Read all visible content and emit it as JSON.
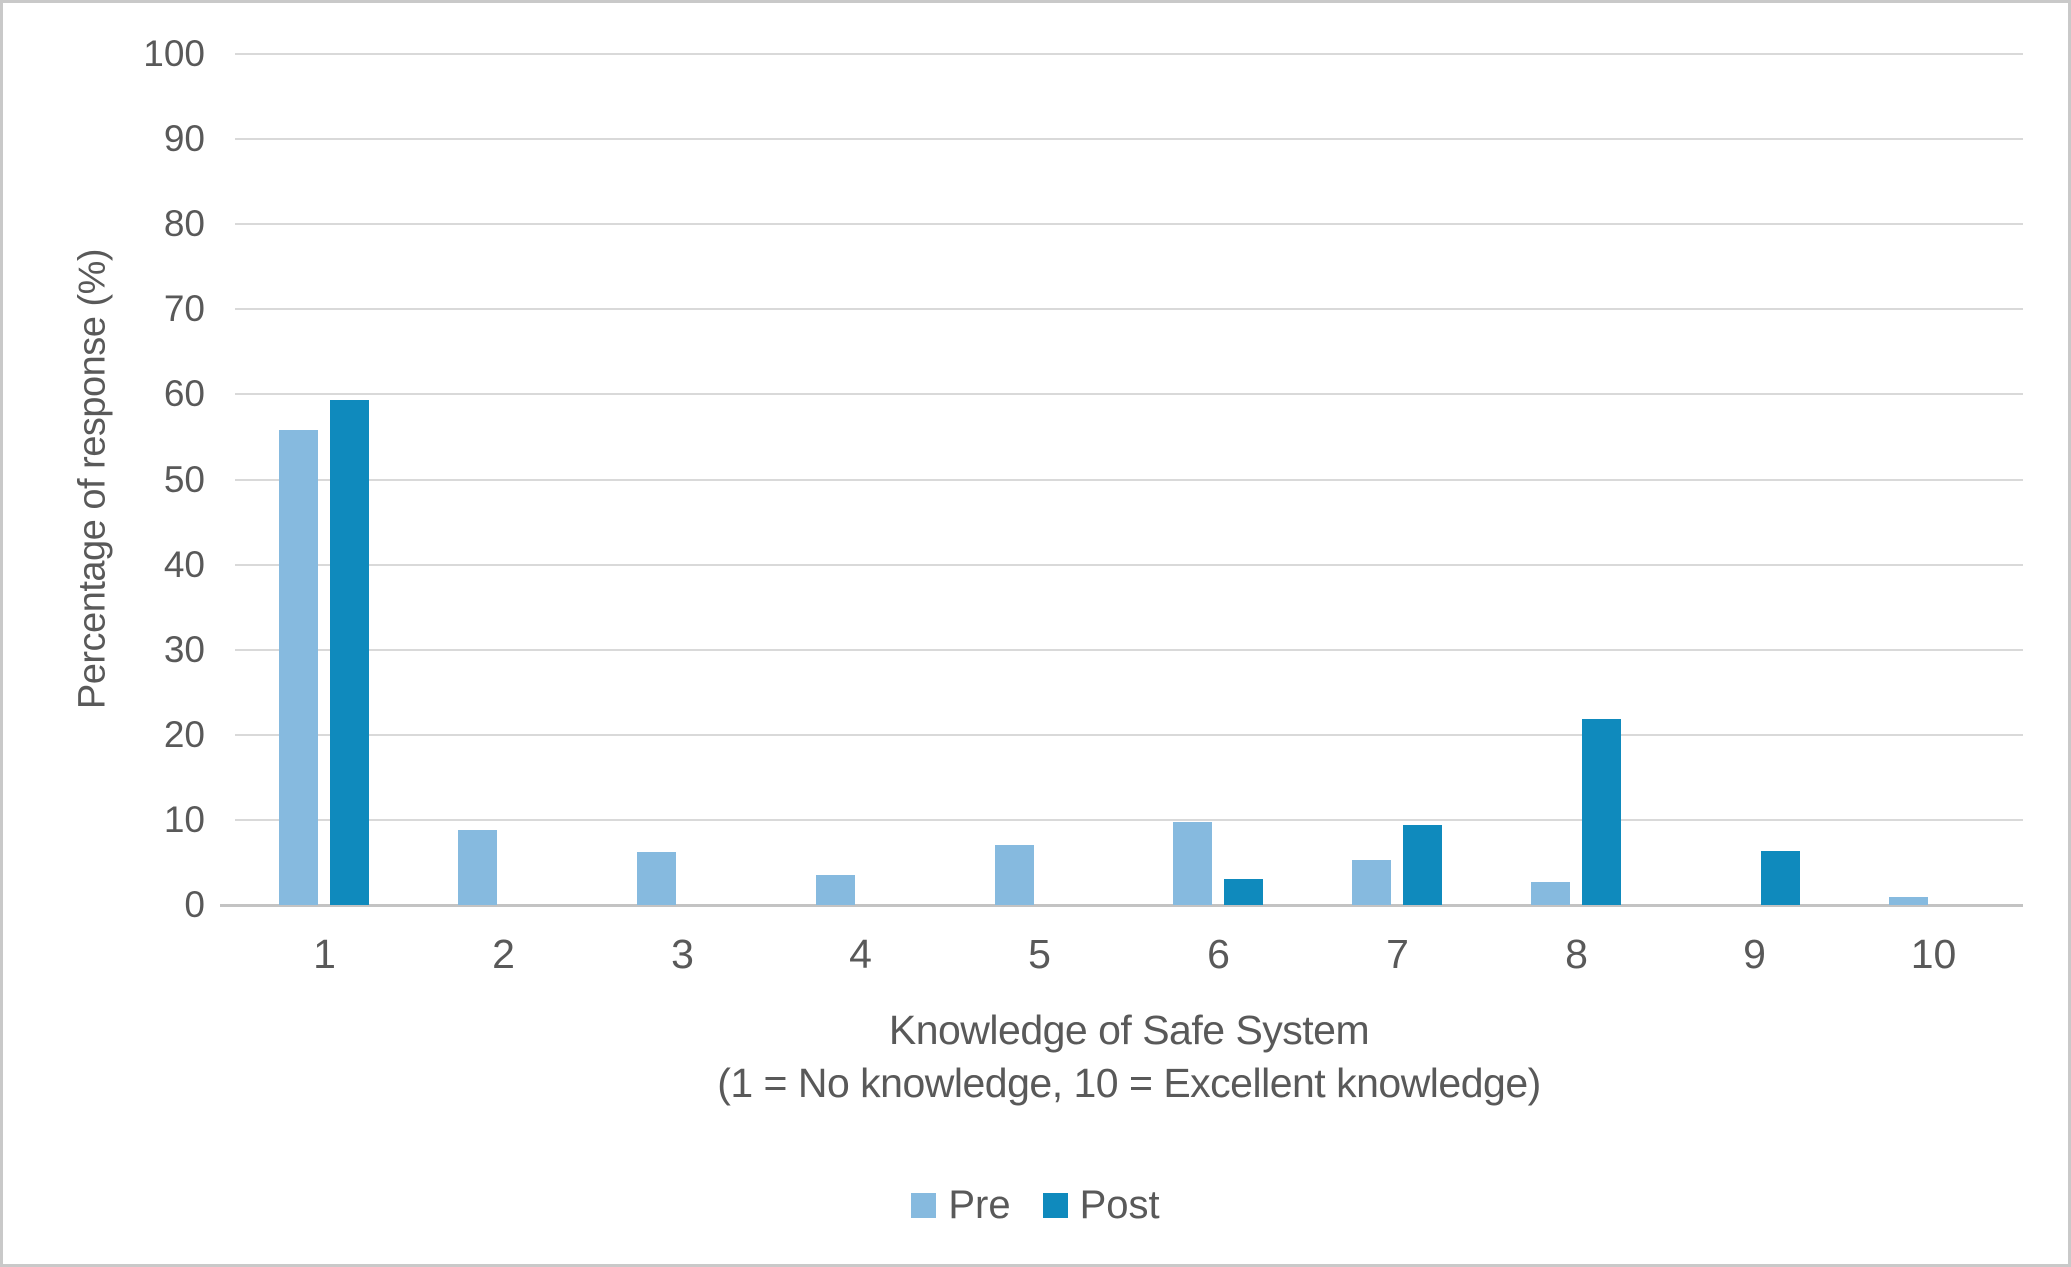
{
  "chart_data": {
    "type": "bar",
    "title": "",
    "categories": [
      "1",
      "2",
      "3",
      "4",
      "5",
      "6",
      "7",
      "8",
      "9",
      "10"
    ],
    "series": [
      {
        "name": "Pre",
        "color": "#86BADF",
        "values": [
          55.8,
          8.8,
          6.2,
          3.5,
          7.1,
          9.7,
          5.3,
          2.7,
          0,
          0.9
        ]
      },
      {
        "name": "Post",
        "color": "#0F8ABD",
        "values": [
          59.4,
          0,
          0,
          0,
          0,
          3.1,
          9.4,
          21.9,
          6.3,
          0
        ]
      }
    ],
    "xlabel_line1": "Knowledge of Safe System",
    "xlabel_line2": "(1 = No knowledge, 10 = Excellent knowledge)",
    "ylabel": "Percentage of response (%)",
    "ylim": [
      0,
      100
    ],
    "yticks": [
      0,
      10,
      20,
      30,
      40,
      50,
      60,
      70,
      80,
      90,
      100
    ],
    "grid": true,
    "legend_position": "bottom"
  },
  "colors": {
    "pre_series": "#86BADF",
    "post_series": "#0F8ABD",
    "text": "#595959",
    "gridline": "#D9D9D9",
    "axis_line": "#C3C3C3",
    "background": "#FFFFFF"
  }
}
